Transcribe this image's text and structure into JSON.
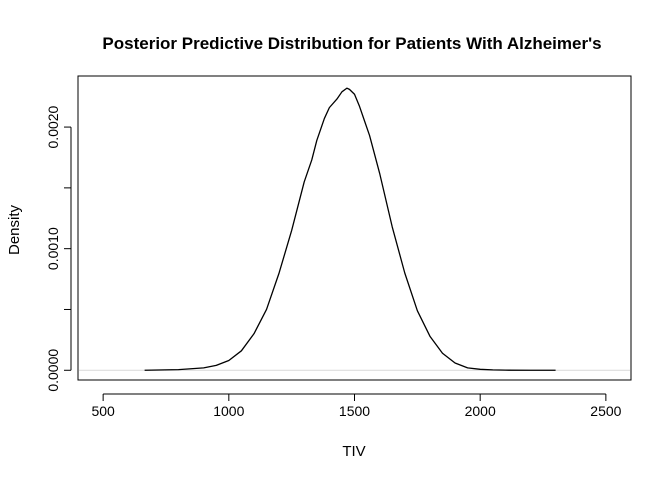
{
  "chart_data": {
    "type": "line",
    "title": "Posterior Predictive Distribution for Patients With Alzheimer's",
    "xlabel": "TIV",
    "ylabel": "Density",
    "xlim": [
      400,
      2600
    ],
    "ylim": [
      -8e-05,
      0.00242
    ],
    "x_ticks": [
      {
        "value": 500,
        "label": "500"
      },
      {
        "value": 1000,
        "label": "1000"
      },
      {
        "value": 1500,
        "label": "1500"
      },
      {
        "value": 2000,
        "label": "2000"
      },
      {
        "value": 2500,
        "label": "2500"
      }
    ],
    "y_ticks": [
      {
        "value": 0,
        "label": "0.0000"
      },
      {
        "value": 0.0005,
        "label": ""
      },
      {
        "value": 0.001,
        "label": "0.0010"
      },
      {
        "value": 0.0015,
        "label": ""
      },
      {
        "value": 0.002,
        "label": "0.0020"
      }
    ],
    "zero_line": true,
    "grid": false,
    "series": [
      {
        "x": [
          665,
          800,
          900,
          950,
          1000,
          1050,
          1100,
          1150,
          1200,
          1250,
          1300,
          1330,
          1350,
          1380,
          1400,
          1430,
          1450,
          1470,
          1480,
          1500,
          1520,
          1540,
          1560,
          1600,
          1650,
          1700,
          1750,
          1800,
          1850,
          1900,
          1950,
          2000,
          2050,
          2100,
          2200,
          2300
        ],
        "y": [
          0.0,
          5e-06,
          2e-05,
          4e-05,
          8e-05,
          0.00016,
          0.0003,
          0.0005,
          0.0008,
          0.00115,
          0.00155,
          0.00173,
          0.00189,
          0.00207,
          0.00216,
          0.00223,
          0.00229,
          0.00232,
          0.00231,
          0.00227,
          0.00217,
          0.00205,
          0.00193,
          0.00162,
          0.00118,
          0.0008,
          0.00049,
          0.00028,
          0.00014,
          6e-05,
          2e-05,
          8e-06,
          3e-06,
          1e-06,
          0.0,
          0.0
        ]
      }
    ]
  }
}
